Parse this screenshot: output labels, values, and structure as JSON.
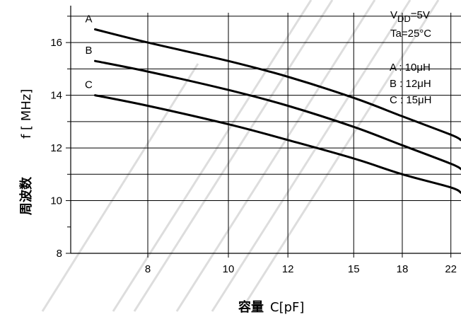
{
  "chart_data": {
    "type": "line",
    "x_axis": {
      "scale": "reciprocal-sqrt",
      "range": [
        6.6,
        23.0
      ],
      "ticks": [
        8,
        10,
        12,
        15,
        18,
        22
      ],
      "tick_labels": [
        "8",
        "10",
        "12",
        "15",
        "18",
        "22"
      ],
      "label_bold": "容量",
      "label": "C[pF]"
    },
    "y_axis": {
      "range": [
        8,
        17.4
      ],
      "ticks": [
        8,
        10,
        12,
        14,
        16
      ],
      "tick_labels": [
        "8",
        "10",
        "12",
        "14",
        "16"
      ],
      "gridlines": [
        10,
        11,
        12,
        13,
        14,
        15,
        16,
        17
      ],
      "label_bold": "周波数",
      "label": "f [ MHz]"
    },
    "grid": true,
    "series": [
      {
        "name": "A",
        "x": [
          7,
          8,
          10,
          12,
          15,
          18,
          22,
          23
        ],
        "y": [
          16.5,
          16.0,
          15.3,
          14.7,
          13.9,
          13.2,
          12.5,
          12.3
        ]
      },
      {
        "name": "B",
        "x": [
          7,
          8,
          10,
          12,
          15,
          18,
          22,
          23
        ],
        "y": [
          15.3,
          14.9,
          14.2,
          13.6,
          12.8,
          12.1,
          11.4,
          11.2
        ]
      },
      {
        "name": "C",
        "x": [
          7,
          8,
          10,
          12,
          15,
          18,
          22,
          23
        ],
        "y": [
          14.0,
          13.6,
          12.9,
          12.3,
          11.6,
          11.0,
          10.5,
          10.3
        ]
      }
    ],
    "annotations": {
      "vdd_main": "V",
      "vdd_sub": "DD",
      "vdd_value": "=5V",
      "ta": "Ta=25°C",
      "legend": [
        "A : 10μH",
        "B : 12μH",
        "C : 15μH"
      ]
    },
    "legend_position": "top-right"
  }
}
